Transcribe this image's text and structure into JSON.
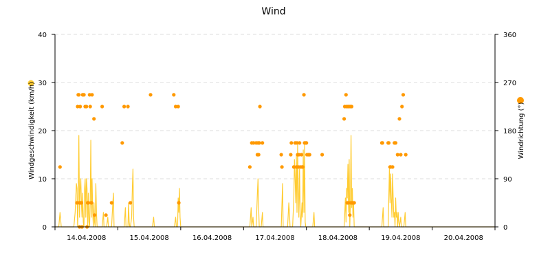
{
  "chart_data": {
    "type": "line",
    "title": "Wind",
    "x_tick_labels": [
      "14.04.2008",
      "15.04.2008",
      "16.04.2008",
      "17.04.2008",
      "18.04.2008",
      "19.04.2008",
      "20.04.2008"
    ],
    "x_range_days": [
      0,
      7
    ],
    "y_left": {
      "label": "Windgeschwindigkeit (km/h)",
      "ticks": [
        0,
        10,
        20,
        30,
        40
      ],
      "range": [
        0,
        40
      ]
    },
    "y_right": {
      "label": "Windrichtung (°)",
      "ticks": [
        0,
        90,
        180,
        270,
        360
      ],
      "range": [
        0,
        360
      ]
    },
    "grid": "horizontal dashed",
    "colors": {
      "speed": "#ffcc33",
      "direction": "#ff9900",
      "grid": "#dddddd"
    },
    "series": [
      {
        "type": "line",
        "axis": "left",
        "color": "#ffcc33",
        "points": [
          [
            0.0,
            0
          ],
          [
            0.06,
            0
          ],
          [
            0.08,
            3
          ],
          [
            0.1,
            0
          ],
          [
            0.3,
            0
          ],
          [
            0.32,
            3
          ],
          [
            0.34,
            9
          ],
          [
            0.35,
            8
          ],
          [
            0.36,
            0
          ],
          [
            0.37,
            5
          ],
          [
            0.38,
            19
          ],
          [
            0.39,
            2
          ],
          [
            0.4,
            8
          ],
          [
            0.41,
            10
          ],
          [
            0.42,
            5
          ],
          [
            0.43,
            2
          ],
          [
            0.44,
            7
          ],
          [
            0.45,
            1
          ],
          [
            0.46,
            0
          ],
          [
            0.47,
            8
          ],
          [
            0.48,
            10
          ],
          [
            0.49,
            2
          ],
          [
            0.5,
            10
          ],
          [
            0.51,
            8
          ],
          [
            0.52,
            0
          ],
          [
            0.53,
            7
          ],
          [
            0.54,
            1
          ],
          [
            0.55,
            0
          ],
          [
            0.56,
            5
          ],
          [
            0.57,
            18
          ],
          [
            0.58,
            2
          ],
          [
            0.59,
            10
          ],
          [
            0.6,
            3
          ],
          [
            0.61,
            0
          ],
          [
            0.62,
            5
          ],
          [
            0.63,
            1
          ],
          [
            0.64,
            0
          ],
          [
            0.65,
            9
          ],
          [
            0.66,
            3
          ],
          [
            0.67,
            0
          ],
          [
            0.75,
            0
          ],
          [
            0.77,
            3
          ],
          [
            0.78,
            0
          ],
          [
            0.82,
            0
          ],
          [
            0.84,
            2
          ],
          [
            0.85,
            0
          ],
          [
            0.9,
            0
          ],
          [
            0.92,
            5
          ],
          [
            0.93,
            7
          ],
          [
            0.94,
            0
          ],
          [
            1.1,
            0
          ],
          [
            1.12,
            4
          ],
          [
            1.13,
            0
          ],
          [
            1.16,
            0
          ],
          [
            1.17,
            5
          ],
          [
            1.18,
            1
          ],
          [
            1.19,
            0
          ],
          [
            1.2,
            0
          ],
          [
            1.22,
            2
          ],
          [
            1.23,
            8
          ],
          [
            1.24,
            12
          ],
          [
            1.25,
            2
          ],
          [
            1.26,
            0
          ],
          [
            1.55,
            0
          ],
          [
            1.57,
            2
          ],
          [
            1.58,
            0
          ],
          [
            1.9,
            0
          ],
          [
            1.92,
            2
          ],
          [
            1.93,
            0
          ],
          [
            1.95,
            0
          ],
          [
            1.96,
            6
          ],
          [
            1.97,
            3
          ],
          [
            1.98,
            8
          ],
          [
            1.99,
            2
          ],
          [
            2.0,
            0
          ],
          [
            3.1,
            0
          ],
          [
            3.12,
            4
          ],
          [
            3.13,
            0
          ],
          [
            3.15,
            2
          ],
          [
            3.16,
            0
          ],
          [
            3.2,
            0
          ],
          [
            3.22,
            7
          ],
          [
            3.23,
            10
          ],
          [
            3.24,
            4
          ],
          [
            3.25,
            0
          ],
          [
            3.28,
            0
          ],
          [
            3.3,
            3
          ],
          [
            3.31,
            0
          ],
          [
            3.6,
            0
          ],
          [
            3.62,
            9
          ],
          [
            3.63,
            0
          ],
          [
            3.7,
            0
          ],
          [
            3.72,
            5
          ],
          [
            3.73,
            3
          ],
          [
            3.74,
            0
          ],
          [
            3.78,
            0
          ],
          [
            3.8,
            6
          ],
          [
            3.81,
            14
          ],
          [
            3.82,
            10
          ],
          [
            3.83,
            5
          ],
          [
            3.84,
            15
          ],
          [
            3.85,
            3
          ],
          [
            3.86,
            17
          ],
          [
            3.87,
            8
          ],
          [
            3.88,
            2
          ],
          [
            3.89,
            12
          ],
          [
            3.9,
            3
          ],
          [
            3.91,
            0
          ],
          [
            3.93,
            5
          ],
          [
            3.94,
            2
          ],
          [
            3.95,
            16
          ],
          [
            3.96,
            3
          ],
          [
            3.97,
            17
          ],
          [
            3.98,
            1
          ],
          [
            3.99,
            0
          ],
          [
            4.1,
            0
          ],
          [
            4.12,
            3
          ],
          [
            4.13,
            0
          ],
          [
            4.6,
            0
          ],
          [
            4.62,
            6
          ],
          [
            4.63,
            1
          ],
          [
            4.64,
            8
          ],
          [
            4.65,
            6
          ],
          [
            4.66,
            13
          ],
          [
            4.67,
            3
          ],
          [
            4.68,
            14
          ],
          [
            4.69,
            0
          ],
          [
            4.7,
            5
          ],
          [
            4.71,
            19
          ],
          [
            4.72,
            4
          ],
          [
            4.73,
            8
          ],
          [
            4.74,
            2
          ],
          [
            4.75,
            5
          ],
          [
            4.76,
            0
          ],
          [
            5.2,
            0
          ],
          [
            5.22,
            4
          ],
          [
            5.23,
            0
          ],
          [
            5.3,
            0
          ],
          [
            5.32,
            12
          ],
          [
            5.33,
            5
          ],
          [
            5.34,
            11
          ],
          [
            5.35,
            6
          ],
          [
            5.36,
            2
          ],
          [
            5.37,
            11
          ],
          [
            5.38,
            6
          ],
          [
            5.39,
            2
          ],
          [
            5.4,
            3
          ],
          [
            5.41,
            0
          ],
          [
            5.42,
            6
          ],
          [
            5.43,
            2
          ],
          [
            5.44,
            3
          ],
          [
            5.45,
            0
          ],
          [
            5.46,
            3
          ],
          [
            5.47,
            1
          ],
          [
            5.48,
            0
          ],
          [
            5.5,
            2
          ],
          [
            5.51,
            0
          ],
          [
            5.55,
            0
          ],
          [
            5.57,
            3
          ],
          [
            5.58,
            0
          ],
          [
            7.0,
            0
          ]
        ]
      },
      {
        "type": "scatter",
        "axis": "right",
        "color": "#ff9900",
        "points": [
          [
            0.08,
            112
          ],
          [
            0.35,
            45
          ],
          [
            0.36,
            225
          ],
          [
            0.37,
            247
          ],
          [
            0.38,
            247
          ],
          [
            0.39,
            45
          ],
          [
            0.39,
            0
          ],
          [
            0.4,
            225
          ],
          [
            0.41,
            45
          ],
          [
            0.42,
            45
          ],
          [
            0.43,
            0
          ],
          [
            0.44,
            247
          ],
          [
            0.45,
            247
          ],
          [
            0.46,
            247
          ],
          [
            0.48,
            225
          ],
          [
            0.5,
            225
          ],
          [
            0.51,
            0
          ],
          [
            0.52,
            45
          ],
          [
            0.53,
            45
          ],
          [
            0.55,
            247
          ],
          [
            0.56,
            225
          ],
          [
            0.58,
            45
          ],
          [
            0.59,
            247
          ],
          [
            0.62,
            202
          ],
          [
            0.63,
            22
          ],
          [
            0.75,
            225
          ],
          [
            0.81,
            22
          ],
          [
            0.9,
            45
          ],
          [
            1.07,
            157
          ],
          [
            1.1,
            225
          ],
          [
            1.16,
            225
          ],
          [
            1.2,
            45
          ],
          [
            1.52,
            247
          ],
          [
            1.89,
            247
          ],
          [
            1.92,
            225
          ],
          [
            1.96,
            225
          ],
          [
            1.97,
            45
          ],
          [
            3.1,
            112
          ],
          [
            3.13,
            157
          ],
          [
            3.16,
            157
          ],
          [
            3.2,
            157
          ],
          [
            3.22,
            135
          ],
          [
            3.23,
            157
          ],
          [
            3.24,
            135
          ],
          [
            3.25,
            157
          ],
          [
            3.26,
            225
          ],
          [
            3.3,
            157
          ],
          [
            3.6,
            135
          ],
          [
            3.61,
            112
          ],
          [
            3.75,
            135
          ],
          [
            3.76,
            157
          ],
          [
            3.8,
            112
          ],
          [
            3.82,
            157
          ],
          [
            3.84,
            112
          ],
          [
            3.85,
            157
          ],
          [
            3.86,
            135
          ],
          [
            3.87,
            112
          ],
          [
            3.88,
            135
          ],
          [
            3.89,
            157
          ],
          [
            3.9,
            112
          ],
          [
            3.92,
            135
          ],
          [
            3.93,
            112
          ],
          [
            3.94,
            112
          ],
          [
            3.96,
            247
          ],
          [
            3.97,
            157
          ],
          [
            3.99,
            157
          ],
          [
            4.0,
            157
          ],
          [
            4.01,
            135
          ],
          [
            4.03,
            135
          ],
          [
            4.05,
            135
          ],
          [
            4.25,
            135
          ],
          [
            4.6,
            202
          ],
          [
            4.61,
            225
          ],
          [
            4.63,
            247
          ],
          [
            4.64,
            225
          ],
          [
            4.65,
            45
          ],
          [
            4.66,
            225
          ],
          [
            4.67,
            45
          ],
          [
            4.68,
            225
          ],
          [
            4.69,
            22
          ],
          [
            4.7,
            225
          ],
          [
            4.71,
            45
          ],
          [
            4.72,
            225
          ],
          [
            4.73,
            45
          ],
          [
            4.74,
            45
          ],
          [
            4.76,
            45
          ],
          [
            5.2,
            157
          ],
          [
            5.21,
            157
          ],
          [
            5.3,
            157
          ],
          [
            5.31,
            157
          ],
          [
            5.33,
            112
          ],
          [
            5.34,
            112
          ],
          [
            5.37,
            112
          ],
          [
            5.4,
            157
          ],
          [
            5.42,
            157
          ],
          [
            5.45,
            135
          ],
          [
            5.48,
            202
          ],
          [
            5.5,
            135
          ],
          [
            5.52,
            225
          ],
          [
            5.54,
            247
          ],
          [
            5.58,
            135
          ]
        ]
      }
    ]
  }
}
